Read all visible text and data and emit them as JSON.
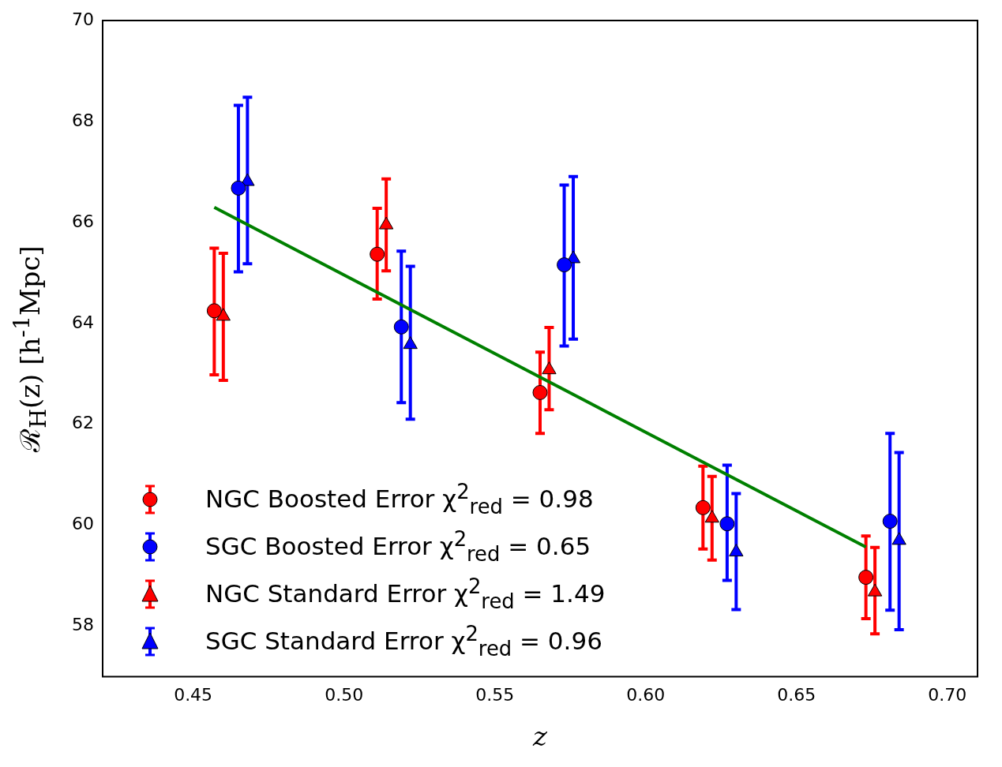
{
  "chart_data": {
    "type": "scatter",
    "xlabel": "z",
    "ylabel": "ℛ$_{H}$(z) [h$^{-1}$Mpc]",
    "xlim": [
      0.42,
      0.71
    ],
    "xticks": [
      {
        "value": 0.45,
        "label": "0.45"
      },
      {
        "value": 0.5,
        "label": "0.50"
      },
      {
        "value": 0.55,
        "label": "0.55"
      },
      {
        "value": 0.6,
        "label": "0.60"
      },
      {
        "value": 0.65,
        "label": "0.65"
      },
      {
        "value": 0.7,
        "label": "0.70"
      }
    ],
    "ylim": [
      57,
      70
    ],
    "yticks": [
      58,
      60,
      62,
      64,
      66,
      68,
      70
    ],
    "grid": false,
    "legend": "bottom left",
    "series": [
      {
        "name": "NGC Boosted Error χ$^{2}$$_{red}$ = 0.98",
        "color": "#ff0000",
        "marker": "circle",
        "x": [
          0.457,
          0.511,
          0.565,
          0.619,
          0.673
        ],
        "values": [
          64.25,
          65.37,
          62.63,
          60.35,
          58.97
        ],
        "errors": [
          [
            62.98,
            65.49
          ],
          [
            64.48,
            66.28
          ],
          [
            61.82,
            63.43
          ],
          [
            59.53,
            61.17
          ],
          [
            58.15,
            59.79
          ]
        ]
      },
      {
        "name": "SGC Boosted Error χ$^{2}$$_{red}$ = 0.65",
        "color": "#0000ff",
        "marker": "circle",
        "x": [
          0.465,
          0.519,
          0.573,
          0.627,
          0.681
        ],
        "values": [
          66.68,
          63.93,
          65.16,
          60.03,
          60.08
        ],
        "errors": [
          [
            65.02,
            68.32
          ],
          [
            62.43,
            65.43
          ],
          [
            63.55,
            66.74
          ],
          [
            58.91,
            61.19
          ],
          [
            58.32,
            61.82
          ]
        ]
      },
      {
        "name": "NGC Standard Error χ$^{2}$$_{red}$ = 1.49",
        "color": "#ff0000",
        "marker": "triangle",
        "x": [
          0.46,
          0.514,
          0.568,
          0.622,
          0.676
        ],
        "values": [
          64.14,
          65.95,
          63.08,
          60.14,
          58.68
        ],
        "errors": [
          [
            62.87,
            65.39
          ],
          [
            65.04,
            66.86
          ],
          [
            62.29,
            63.92
          ],
          [
            59.31,
            60.97
          ],
          [
            57.85,
            59.56
          ]
        ]
      },
      {
        "name": "SGC Standard Error χ$^{2}$$_{red}$ = 0.96",
        "color": "#0000ff",
        "marker": "triangle",
        "x": [
          0.468,
          0.522,
          0.576,
          0.63,
          0.684
        ],
        "values": [
          66.81,
          63.58,
          65.28,
          59.47,
          59.7
        ],
        "errors": [
          [
            65.18,
            68.48
          ],
          [
            62.1,
            65.13
          ],
          [
            63.69,
            66.91
          ],
          [
            58.33,
            60.63
          ],
          [
            57.93,
            61.44
          ]
        ]
      },
      {
        "type": "line",
        "color": "#008000",
        "marker": "none",
        "x": [
          0.457,
          0.673
        ],
        "values": [
          66.3,
          59.57
        ]
      }
    ]
  }
}
